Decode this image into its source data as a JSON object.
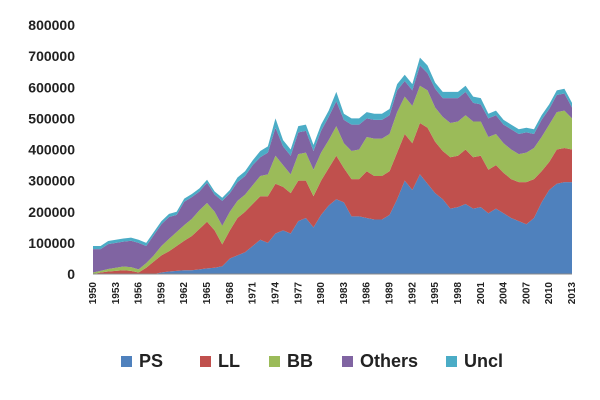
{
  "chart_data": {
    "type": "area",
    "stacked": true,
    "title": "",
    "xlabel": "",
    "ylabel": "",
    "ylim": [
      0,
      800000
    ],
    "yticks": [
      "0",
      "100000",
      "200000",
      "300000",
      "400000",
      "500000",
      "600000",
      "700000",
      "800000"
    ],
    "xticks": [
      "1950",
      "1953",
      "1956",
      "1959",
      "1962",
      "1965",
      "1968",
      "1971",
      "1974",
      "1977",
      "1980",
      "1983",
      "1986",
      "1989",
      "1992",
      "1995",
      "1998",
      "2001",
      "2004",
      "2007",
      "2010",
      "2013"
    ],
    "grid": false,
    "legend": "bottom",
    "x": [
      1950,
      1951,
      1952,
      1953,
      1954,
      1955,
      1956,
      1957,
      1958,
      1959,
      1960,
      1961,
      1962,
      1963,
      1964,
      1965,
      1966,
      1967,
      1968,
      1969,
      1970,
      1971,
      1972,
      1973,
      1974,
      1975,
      1976,
      1977,
      1978,
      1979,
      1980,
      1981,
      1982,
      1983,
      1984,
      1985,
      1986,
      1987,
      1988,
      1989,
      1990,
      1991,
      1992,
      1993,
      1994,
      1995,
      1996,
      1997,
      1998,
      1999,
      2000,
      2001,
      2002,
      2003,
      2004,
      2005,
      2006,
      2007,
      2008,
      2009,
      2010,
      2011,
      2012,
      2013
    ],
    "series": [
      {
        "name": "PS",
        "color": "#4F81BD",
        "values": [
          0,
          0,
          0,
          0,
          0,
          0,
          0,
          0,
          0,
          5000,
          8000,
          10000,
          12000,
          12000,
          15000,
          18000,
          20000,
          25000,
          50000,
          60000,
          70000,
          90000,
          110000,
          100000,
          130000,
          140000,
          130000,
          170000,
          180000,
          150000,
          190000,
          220000,
          240000,
          230000,
          185000,
          185000,
          180000,
          175000,
          175000,
          190000,
          240000,
          300000,
          270000,
          320000,
          290000,
          260000,
          240000,
          210000,
          215000,
          225000,
          210000,
          215000,
          195000,
          210000,
          195000,
          180000,
          170000,
          160000,
          180000,
          230000,
          270000,
          290000,
          295000,
          295000
        ]
      },
      {
        "name": "LL",
        "color": "#C0504D",
        "values": [
          0,
          5000,
          8000,
          10000,
          12000,
          10000,
          5000,
          20000,
          40000,
          55000,
          65000,
          80000,
          95000,
          110000,
          130000,
          150000,
          120000,
          70000,
          90000,
          120000,
          130000,
          135000,
          140000,
          150000,
          160000,
          140000,
          130000,
          130000,
          120000,
          100000,
          110000,
          120000,
          140000,
          110000,
          120000,
          120000,
          150000,
          140000,
          140000,
          140000,
          150000,
          150000,
          150000,
          165000,
          180000,
          165000,
          155000,
          165000,
          165000,
          175000,
          165000,
          165000,
          140000,
          140000,
          130000,
          125000,
          125000,
          135000,
          125000,
          100000,
          90000,
          110000,
          110000,
          105000
        ]
      },
      {
        "name": "BB",
        "color": "#9BBB59",
        "values": [
          5000,
          5000,
          8000,
          10000,
          12000,
          12000,
          10000,
          15000,
          20000,
          30000,
          40000,
          45000,
          50000,
          55000,
          60000,
          60000,
          60000,
          60000,
          60000,
          55000,
          55000,
          60000,
          65000,
          70000,
          90000,
          70000,
          60000,
          85000,
          90000,
          85000,
          90000,
          90000,
          95000,
          80000,
          90000,
          95000,
          110000,
          120000,
          120000,
          120000,
          130000,
          120000,
          120000,
          120000,
          120000,
          110000,
          110000,
          110000,
          110000,
          110000,
          115000,
          110000,
          105000,
          100000,
          95000,
          95000,
          90000,
          95000,
          100000,
          110000,
          120000,
          120000,
          120000,
          100000
        ]
      },
      {
        "name": "Others",
        "color": "#8064A2",
        "values": [
          75000,
          70000,
          80000,
          80000,
          80000,
          85000,
          85000,
          55000,
          65000,
          70000,
          70000,
          55000,
          75000,
          70000,
          60000,
          65000,
          55000,
          80000,
          60000,
          60000,
          60000,
          65000,
          60000,
          70000,
          90000,
          60000,
          60000,
          70000,
          70000,
          60000,
          70000,
          75000,
          80000,
          75000,
          85000,
          80000,
          60000,
          60000,
          60000,
          60000,
          70000,
          50000,
          50000,
          65000,
          55000,
          60000,
          60000,
          80000,
          75000,
          75000,
          60000,
          55000,
          60000,
          60000,
          60000,
          65000,
          65000,
          65000,
          45000,
          55000,
          50000,
          55000,
          55000,
          35000
        ]
      },
      {
        "name": "Uncl",
        "color": "#4BACC6",
        "values": [
          10000,
          10000,
          10000,
          10000,
          10000,
          10000,
          10000,
          10000,
          10000,
          10000,
          10000,
          10000,
          10000,
          10000,
          10000,
          10000,
          10000,
          10000,
          10000,
          15000,
          15000,
          15000,
          20000,
          20000,
          30000,
          20000,
          20000,
          20000,
          20000,
          20000,
          20000,
          20000,
          30000,
          20000,
          20000,
          20000,
          20000,
          20000,
          20000,
          20000,
          20000,
          20000,
          20000,
          25000,
          25000,
          20000,
          20000,
          20000,
          20000,
          20000,
          20000,
          20000,
          15000,
          15000,
          15000,
          15000,
          15000,
          15000,
          15000,
          15000,
          15000,
          15000,
          15000,
          15000
        ]
      }
    ]
  }
}
